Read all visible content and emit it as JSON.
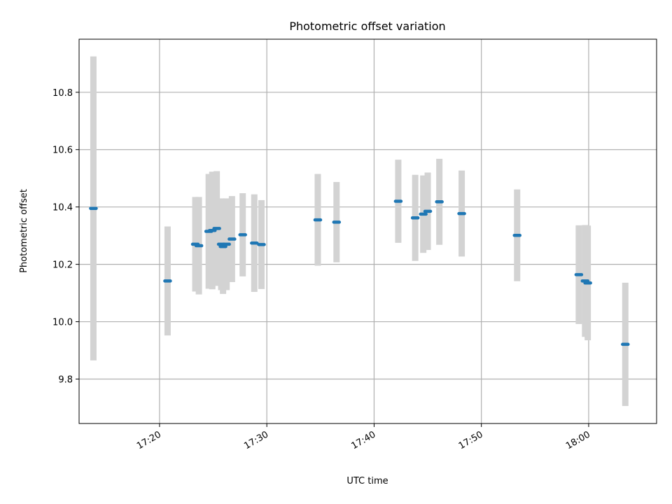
{
  "chart_data": {
    "type": "scatter",
    "title": "Photometric offset variation",
    "xlabel": "UTC time",
    "ylabel": "Photometric offset",
    "x_ticks": [
      "17:20",
      "17:30",
      "17:40",
      "17:50",
      "18:00"
    ],
    "y_ticks": [
      "9.8",
      "10.0",
      "10.2",
      "10.4",
      "10.6",
      "10.8"
    ],
    "xlim": [
      "17:12:30",
      "18:06:20"
    ],
    "ylim": [
      9.645,
      10.985
    ],
    "grid": true,
    "colors": {
      "point": "#1f77b4",
      "errorbar": "#d3d3d3",
      "grid": "#b0b0b0"
    },
    "points": [
      {
        "t": "17:13:50",
        "y": 10.395,
        "err": 0.53
      },
      {
        "t": "17:20:45",
        "y": 10.142,
        "err": 0.19
      },
      {
        "t": "17:23:20",
        "y": 10.27,
        "err": 0.165
      },
      {
        "t": "17:23:40",
        "y": 10.265,
        "err": 0.17
      },
      {
        "t": "17:24:35",
        "y": 10.315,
        "err": 0.2
      },
      {
        "t": "17:24:55",
        "y": 10.318,
        "err": 0.205
      },
      {
        "t": "17:25:20",
        "y": 10.325,
        "err": 0.2
      },
      {
        "t": "17:25:45",
        "y": 10.27,
        "err": 0.16
      },
      {
        "t": "17:25:55",
        "y": 10.262,
        "err": 0.165
      },
      {
        "t": "17:26:15",
        "y": 10.27,
        "err": 0.16
      },
      {
        "t": "17:26:45",
        "y": 10.288,
        "err": 0.15
      },
      {
        "t": "17:27:45",
        "y": 10.303,
        "err": 0.145
      },
      {
        "t": "17:28:50",
        "y": 10.274,
        "err": 0.17
      },
      {
        "t": "17:29:30",
        "y": 10.269,
        "err": 0.155
      },
      {
        "t": "17:34:45",
        "y": 10.355,
        "err": 0.16
      },
      {
        "t": "17:36:30",
        "y": 10.347,
        "err": 0.14
      },
      {
        "t": "17:42:15",
        "y": 10.42,
        "err": 0.145
      },
      {
        "t": "17:43:50",
        "y": 10.362,
        "err": 0.15
      },
      {
        "t": "17:44:35",
        "y": 10.375,
        "err": 0.135
      },
      {
        "t": "17:45:00",
        "y": 10.385,
        "err": 0.135
      },
      {
        "t": "17:46:05",
        "y": 10.418,
        "err": 0.15
      },
      {
        "t": "17:48:10",
        "y": 10.377,
        "err": 0.15
      },
      {
        "t": "17:53:20",
        "y": 10.301,
        "err": 0.16
      },
      {
        "t": "17:59:05",
        "y": 10.164,
        "err": 0.172
      },
      {
        "t": "17:59:40",
        "y": 10.142,
        "err": 0.195
      },
      {
        "t": "17:59:55",
        "y": 10.135,
        "err": 0.2
      },
      {
        "t": "18:03:25",
        "y": 9.921,
        "err": 0.215
      }
    ]
  }
}
